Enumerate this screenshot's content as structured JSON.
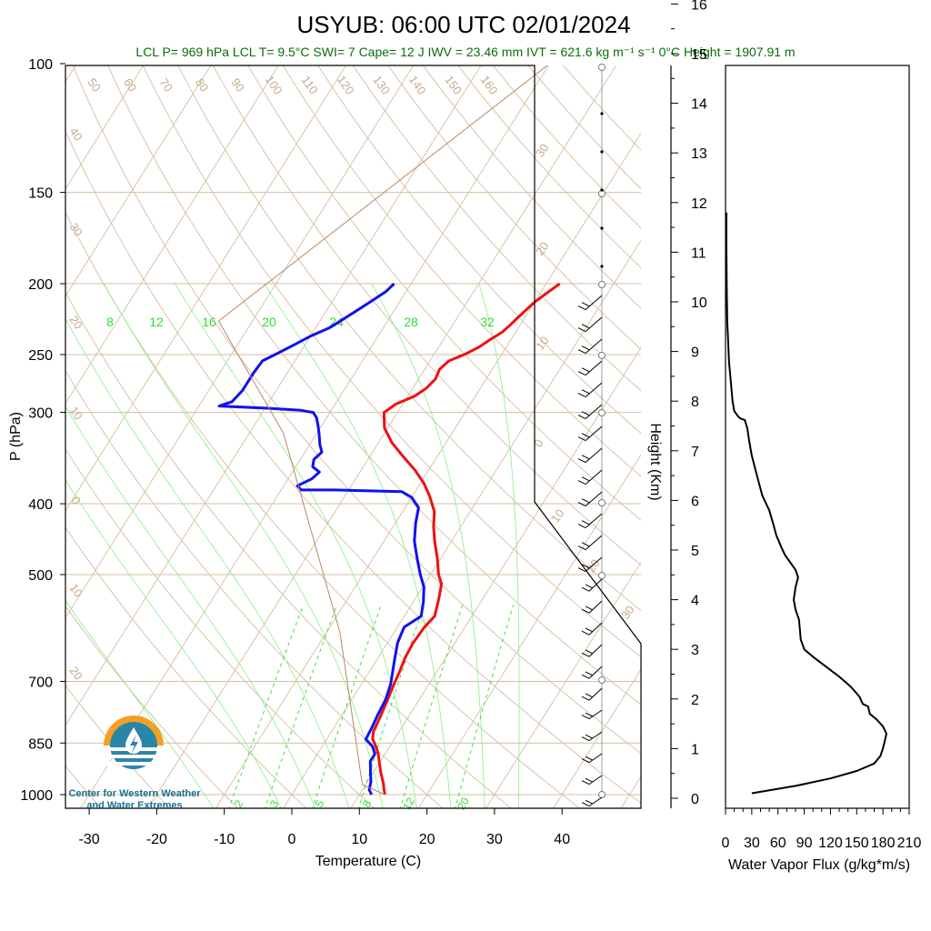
{
  "title": "USYUB: 06:00 UTC 02/01/2024",
  "subtitle": "LCL P= 969 hPa  LCL T= 9.5°C  SWI= 7  Cape= 12 J  IWV = 23.46 mm  IVT = 621.6 kg m⁻¹ s⁻¹  0°C Height = 1907.91 m",
  "logo": {
    "line1": "Center for Western Weather",
    "line2": "and Water Extremes"
  },
  "colors": {
    "temperature": "#ee1111",
    "dewpoint": "#1111ee",
    "isotherm": "#d4bfa0",
    "mixing_ratio": "#33dd33",
    "flux": "#000000"
  },
  "chart_data": [
    {
      "type": "line",
      "subtype": "skew-t",
      "xlabel": "Temperature (C)",
      "ylabel": "P (hPa)",
      "xlim": [
        -34,
        50
      ],
      "ylim": [
        1000,
        100
      ],
      "x_ticks": [
        -30,
        -20,
        -10,
        0,
        10,
        20,
        30,
        40
      ],
      "y_ticks": [
        100,
        150,
        200,
        250,
        300,
        400,
        500,
        700,
        850,
        1000
      ],
      "mixing_ratio_labels_upper": [
        "8",
        "12",
        "16",
        "20",
        "24",
        "28",
        "32"
      ],
      "mixing_ratio_labels_lower": [
        "2",
        "3",
        "5",
        "8",
        "12",
        "20"
      ],
      "isotherm_labels_top": [
        "50",
        "60",
        "70",
        "80",
        "90",
        "100",
        "110",
        "120",
        "130",
        "140",
        "150",
        "160"
      ],
      "isotherm_labels_left": [
        "40",
        "30",
        "20",
        "10",
        "0",
        "10",
        "20"
      ],
      "isotherm_labels_right": [
        "30",
        "20",
        "10",
        "0",
        "10",
        "20",
        "30"
      ],
      "series": [
        {
          "name": "Temperature",
          "points": [
            [
              13.8,
              1000
            ],
            [
              13.2,
              985
            ],
            [
              12.5,
              965
            ],
            [
              11.2,
              935
            ],
            [
              10.0,
              905
            ],
            [
              9.0,
              880
            ],
            [
              8.0,
              860
            ],
            [
              6.8,
              840
            ],
            [
              6.2,
              820
            ],
            [
              5.8,
              780
            ],
            [
              5.3,
              740
            ],
            [
              4.8,
              705
            ],
            [
              4.5,
              680
            ],
            [
              4.0,
              650
            ],
            [
              3.8,
              620
            ],
            [
              4.0,
              590
            ],
            [
              4.5,
              570
            ],
            [
              3.5,
              540
            ],
            [
              2.5,
              515
            ],
            [
              1.2,
              500
            ],
            [
              -0.5,
              475
            ],
            [
              -2.5,
              450
            ],
            [
              -4.0,
              430
            ],
            [
              -5.3,
              410
            ],
            [
              -7.5,
              390
            ],
            [
              -9.5,
              375
            ],
            [
              -12.0,
              360
            ],
            [
              -15.0,
              345
            ],
            [
              -18.0,
              330
            ],
            [
              -20.5,
              315
            ],
            [
              -22.0,
              300
            ],
            [
              -21.0,
              292
            ],
            [
              -19.0,
              285
            ],
            [
              -18.0,
              278
            ],
            [
              -17.5,
              270
            ],
            [
              -17.8,
              262
            ],
            [
              -17.2,
              255
            ],
            [
              -15.5,
              250
            ],
            [
              -14.0,
              244
            ],
            [
              -13.0,
              238
            ],
            [
              -12.0,
              233
            ],
            [
              -11.5,
              228
            ],
            [
              -11.0,
              222
            ],
            [
              -10.5,
              217
            ],
            [
              -10.0,
              212
            ],
            [
              -9.2,
              207
            ],
            [
              -8.5,
              203
            ],
            [
              -8.0,
              200
            ]
          ]
        },
        {
          "name": "Dewpoint",
          "points": [
            [
              11.8,
              1000
            ],
            [
              11.0,
              985
            ],
            [
              10.5,
              960
            ],
            [
              9.5,
              930
            ],
            [
              8.5,
              900
            ],
            [
              8.5,
              880
            ],
            [
              7.5,
              860
            ],
            [
              5.8,
              840
            ],
            [
              5.6,
              810
            ],
            [
              5.3,
              780
            ],
            [
              5.0,
              740
            ],
            [
              4.3,
              705
            ],
            [
              3.5,
              680
            ],
            [
              2.5,
              650
            ],
            [
              1.5,
              620
            ],
            [
              1.0,
              590
            ],
            [
              2.5,
              570
            ],
            [
              1.5,
              545
            ],
            [
              0.2,
              520
            ],
            [
              -1.5,
              500
            ],
            [
              -3.5,
              475
            ],
            [
              -5.5,
              450
            ],
            [
              -7.0,
              425
            ],
            [
              -8.0,
              405
            ],
            [
              -10.0,
              392
            ],
            [
              -12.0,
              385
            ],
            [
              -22.0,
              383
            ],
            [
              -27.0,
              383
            ],
            [
              -28.0,
              378
            ],
            [
              -26.5,
              370
            ],
            [
              -26.0,
              362
            ],
            [
              -27.5,
              356
            ],
            [
              -28.0,
              348
            ],
            [
              -27.5,
              340
            ],
            [
              -28.5,
              332
            ],
            [
              -29.5,
              322
            ],
            [
              -30.5,
              313
            ],
            [
              -31.5,
              305
            ],
            [
              -32.5,
              300
            ],
            [
              -34.5,
              298
            ],
            [
              -40.0,
              296
            ],
            [
              -47.0,
              294
            ],
            [
              -45.5,
              290
            ],
            [
              -45.0,
              280
            ],
            [
              -45.0,
              265
            ],
            [
              -44.8,
              255
            ],
            [
              -43.5,
              250
            ],
            [
              -41.5,
              242
            ],
            [
              -40.0,
              236
            ],
            [
              -38.0,
              230
            ],
            [
              -37.0,
              225
            ],
            [
              -36.0,
              220
            ],
            [
              -35.0,
              215
            ],
            [
              -34.0,
              210
            ],
            [
              -33.0,
              205
            ],
            [
              -32.5,
              200
            ]
          ]
        }
      ]
    },
    {
      "type": "line",
      "xlabel": "Water Vapor Flux (g/kg*m/s)",
      "ylabel": "Height (Km)",
      "xlim": [
        0,
        210
      ],
      "ylim": [
        0,
        16.5
      ],
      "x_ticks": [
        0,
        30,
        60,
        90,
        120,
        150,
        180,
        210
      ],
      "y_ticks": [
        0,
        1,
        2,
        3,
        4,
        5,
        6,
        7,
        8,
        9,
        10,
        11,
        12,
        13,
        14,
        15,
        16
      ],
      "series": [
        {
          "name": "Water Vapor Flux",
          "points": [
            [
              30,
              0.1
            ],
            [
              80,
              0.25
            ],
            [
              120,
              0.4
            ],
            [
              150,
              0.55
            ],
            [
              170,
              0.7
            ],
            [
              177,
              0.85
            ],
            [
              180,
              1.0
            ],
            [
              182,
              1.15
            ],
            [
              184,
              1.3
            ],
            [
              180,
              1.45
            ],
            [
              172,
              1.6
            ],
            [
              165,
              1.7
            ],
            [
              163,
              1.85
            ],
            [
              157,
              1.9
            ],
            [
              153,
              2.05
            ],
            [
              143,
              2.25
            ],
            [
              130,
              2.45
            ],
            [
              115,
              2.65
            ],
            [
              100,
              2.85
            ],
            [
              90,
              3.0
            ],
            [
              86,
              3.2
            ],
            [
              85,
              3.4
            ],
            [
              84,
              3.6
            ],
            [
              80,
              3.8
            ],
            [
              78,
              4.0
            ],
            [
              80,
              4.25
            ],
            [
              83,
              4.45
            ],
            [
              80,
              4.6
            ],
            [
              74,
              4.75
            ],
            [
              68,
              4.9
            ],
            [
              64,
              5.05
            ],
            [
              58,
              5.3
            ],
            [
              55,
              5.5
            ],
            [
              50,
              5.8
            ],
            [
              42,
              6.1
            ],
            [
              36,
              6.5
            ],
            [
              30,
              6.9
            ],
            [
              27,
              7.2
            ],
            [
              25,
              7.45
            ],
            [
              22,
              7.62
            ],
            [
              17,
              7.65
            ],
            [
              14,
              7.7
            ],
            [
              10,
              7.8
            ],
            [
              8,
              8.0
            ],
            [
              6,
              8.4
            ],
            [
              4,
              8.8
            ],
            [
              3,
              9.2
            ],
            [
              2,
              9.6
            ],
            [
              1.5,
              10.2
            ],
            [
              1,
              11.0
            ],
            [
              1,
              11.8
            ]
          ]
        }
      ]
    }
  ]
}
